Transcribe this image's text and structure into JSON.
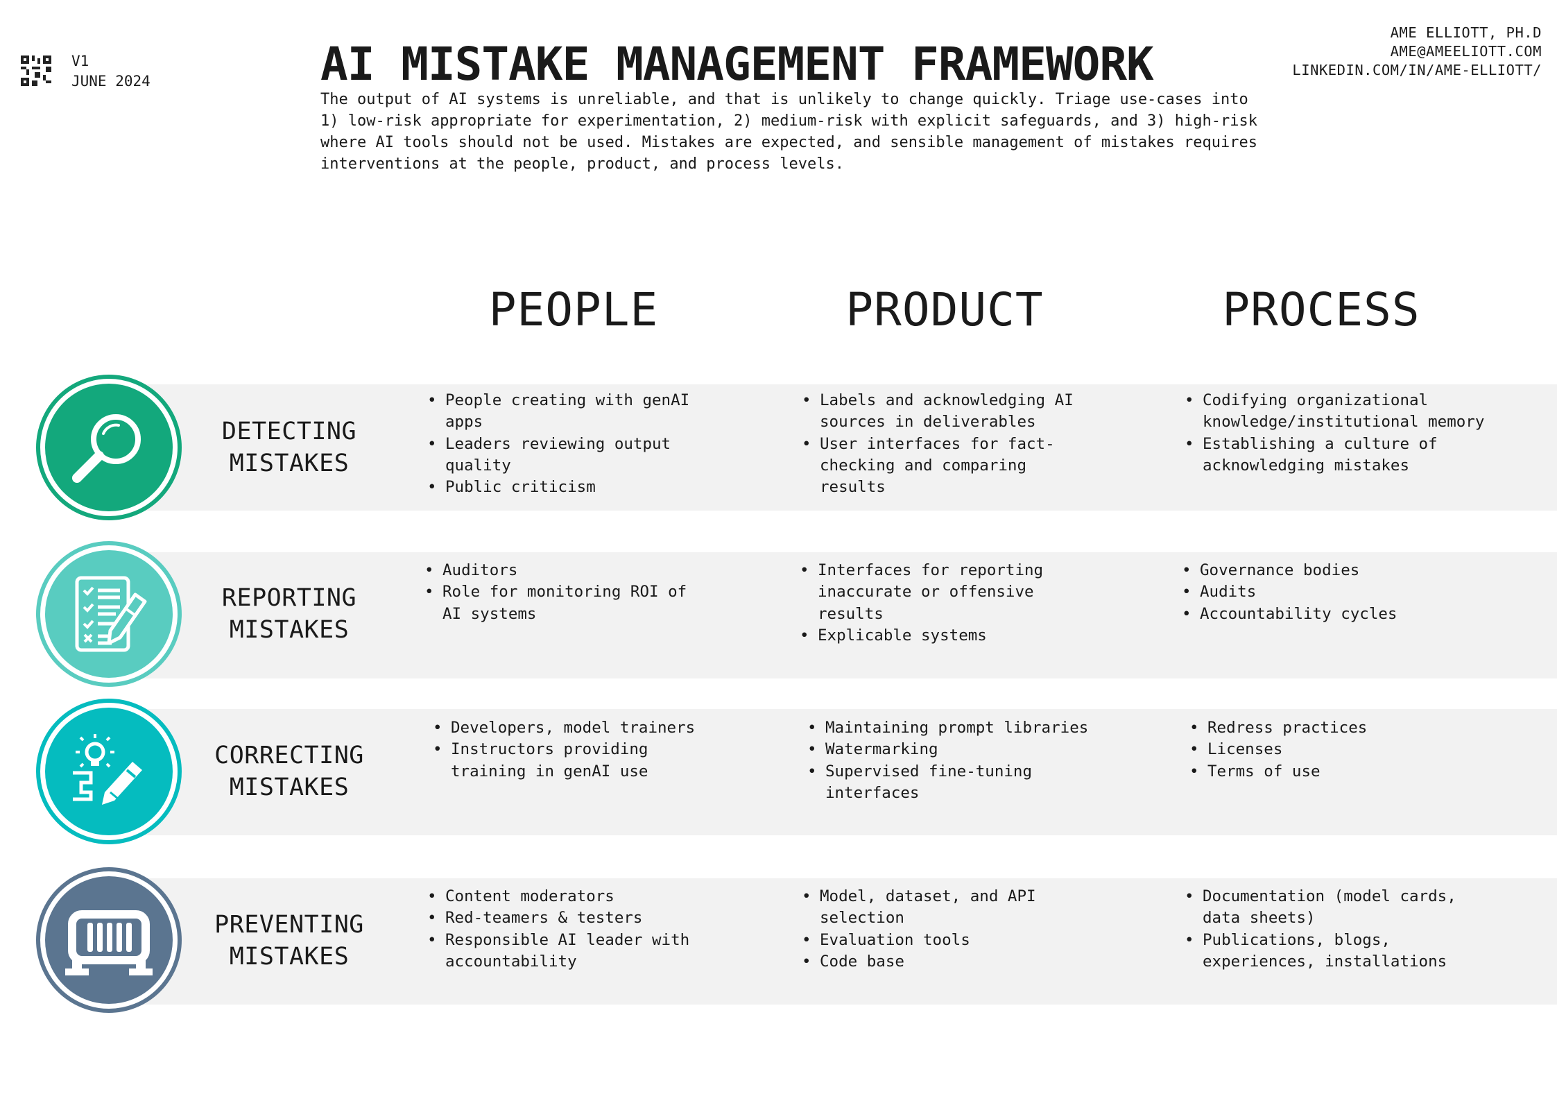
{
  "header": {
    "version": "V1",
    "date": "JUNE 2024",
    "title": "AI MISTAKE MANAGEMENT FRAMEWORK",
    "intro": "The output of AI systems is unreliable, and that is unlikely to change quickly. Triage use-cases into 1) low-risk appropriate for experimentation, 2) medium-risk with explicit safeguards, and 3) high-risk where AI tools should not be used. Mistakes are expected, and sensible management of mistakes requires interventions at the people, product, and process levels.",
    "author": {
      "name": "AME ELLIOTT, PH.D",
      "email": "AME@AMEELIOTT.COM",
      "linkedin": "LINKEDIN.COM/IN/AME-ELLIOTT/"
    }
  },
  "columns": {
    "people": "PEOPLE",
    "product": "PRODUCT",
    "process": "PROCESS"
  },
  "rows": [
    {
      "label_line1": "DETECTING",
      "label_line2": "MISTAKES",
      "icon": "magnifier-icon",
      "color": "#13a87c",
      "people": [
        "People creating with genAI apps",
        "Leaders reviewing output quality",
        "Public criticism"
      ],
      "product": [
        "Labels and acknowledging AI sources in deliverables",
        "User interfaces for fact-checking and comparing results"
      ],
      "process": [
        "Codifying organizational knowledge/institutional memory",
        "Establishing a culture of acknowledging mistakes"
      ]
    },
    {
      "label_line1": "REPORTING",
      "label_line2": "MISTAKES",
      "icon": "checklist-icon",
      "color": "#59ccc0",
      "people": [
        "Auditors",
        "Role for monitoring ROI of AI systems"
      ],
      "product": [
        "Interfaces for reporting inaccurate or offensive results",
        "Explicable systems"
      ],
      "process": [
        "Governance bodies",
        "Audits",
        "Accountability cycles"
      ]
    },
    {
      "label_line1": "CORRECTING",
      "label_line2": "MISTAKES",
      "icon": "lightbulb-pencil-icon",
      "color": "#05bcbf",
      "people": [
        "Developers, model trainers",
        "Instructors providing training in genAI use"
      ],
      "product": [
        "Maintaining prompt libraries",
        "Watermarking",
        "Supervised fine-tuning interfaces"
      ],
      "process": [
        "Redress practices",
        "Licenses",
        "Terms of use"
      ]
    },
    {
      "label_line1": "PREVENTING",
      "label_line2": "MISTAKES",
      "icon": "barrier-icon",
      "color": "#5b7590",
      "people": [
        "Content moderators",
        "Red-teamers & testers",
        "Responsible AI leader with accountability"
      ],
      "product": [
        "Model, dataset, and API selection",
        "Evaluation tools",
        "Code base"
      ],
      "process": [
        "Documentation (model cards, data sheets)",
        "Publications, blogs, experiences, installations"
      ]
    }
  ]
}
